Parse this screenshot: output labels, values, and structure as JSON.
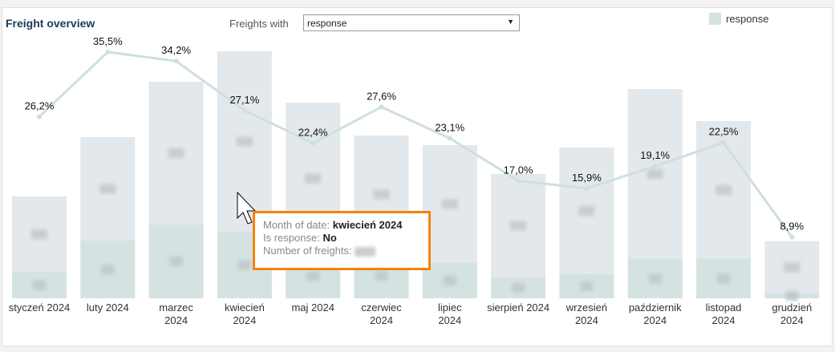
{
  "header": {
    "title": "Freight overview",
    "filter_label": "Freights with",
    "filter_value": "response"
  },
  "legend": {
    "label": "response",
    "color": "#d5e2e2"
  },
  "tooltip": {
    "l1": "Month of date: ",
    "v1": "kwiecień 2024",
    "l2": "Is response: ",
    "v2": "No",
    "l3": "Number of freights: "
  },
  "colors": {
    "total": "#e3e8ec",
    "response": "#d5e2e2",
    "line": "#cfdfdf",
    "tooltip_border": "#f5820a"
  },
  "chart_data": {
    "type": "bar",
    "categories": [
      "styczeń 2024",
      "luty 2024",
      "marzec 2024",
      "kwiecień 2024",
      "maj 2024",
      "czerwiec 2024",
      "lipiec 2024",
      "sierpień 2024",
      "wrzesień 2024",
      "październik 2024",
      "listopad 2024",
      "grudzień 2024"
    ],
    "series": [
      {
        "name": "total freights (estimated, values hidden)",
        "values": [
          127,
          201,
          270,
          308,
          244,
          203,
          191,
          155,
          188,
          261,
          221,
          71
        ]
      },
      {
        "name": "response",
        "values": [
          33,
          72,
          92,
          83,
          55,
          56,
          44,
          26,
          30,
          49,
          49,
          6
        ]
      },
      {
        "name": "response share %",
        "values": [
          26.2,
          35.5,
          34.2,
          27.1,
          22.4,
          27.6,
          23.1,
          17.0,
          15.9,
          19.1,
          22.5,
          8.9
        ],
        "labels": [
          "26,2%",
          "35,5%",
          "34,2%",
          "27,1%",
          "22,4%",
          "27,6%",
          "23,1%",
          "17,0%",
          "15,9%",
          "19,1%",
          "22,5%",
          "8,9%"
        ]
      }
    ],
    "grid": false,
    "legend_position": "top-right"
  }
}
